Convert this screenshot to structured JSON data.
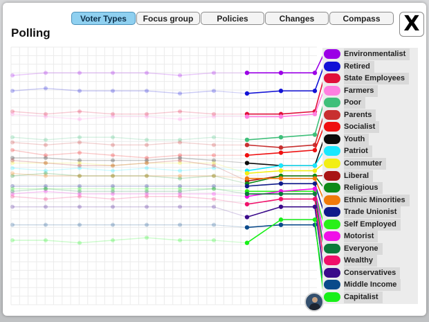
{
  "window": {
    "title": "Polling"
  },
  "tabs": [
    {
      "label": "Voter Types",
      "active": true
    },
    {
      "label": "Focus group",
      "active": false
    },
    {
      "label": "Policies",
      "active": false
    },
    {
      "label": "Changes",
      "active": false
    },
    {
      "label": "Compass",
      "active": false
    }
  ],
  "close_label": "X",
  "avatar_icon": "advisor-portrait-icon",
  "legend": [
    {
      "label": "Environmentalist",
      "color": "#9b00e6"
    },
    {
      "label": "Retired",
      "color": "#1212d6"
    },
    {
      "label": "State Employees",
      "color": "#e0103a"
    },
    {
      "label": "Farmers",
      "color": "#ff7fe0"
    },
    {
      "label": "Poor",
      "color": "#3fbf7a"
    },
    {
      "label": "Parents",
      "color": "#c83030"
    },
    {
      "label": "Socialist",
      "color": "#ef0f0f"
    },
    {
      "label": "Youth",
      "color": "#0a0a0a"
    },
    {
      "label": "Patriot",
      "color": "#19e8ff"
    },
    {
      "label": "Commuter",
      "color": "#f2ee14"
    },
    {
      "label": "Liberal",
      "color": "#a81414"
    },
    {
      "label": "Religious",
      "color": "#0c8a18"
    },
    {
      "label": "Ethnic Minorities",
      "color": "#f07a0a"
    },
    {
      "label": "Trade Unionist",
      "color": "#0f1a8a"
    },
    {
      "label": "Self Employed",
      "color": "#29f018"
    },
    {
      "label": "Motorist",
      "color": "#f010e8"
    },
    {
      "label": "Everyone",
      "color": "#0a7a3a"
    },
    {
      "label": "Wealthy",
      "color": "#f0106a"
    },
    {
      "label": "Conservatives",
      "color": "#3a0a8a"
    },
    {
      "label": "Middle Income",
      "color": "#0a4a8a"
    },
    {
      "label": "Capitalist",
      "color": "#18f018"
    }
  ],
  "chart_data": {
    "type": "line",
    "description_ranks": "y values are approval level, 0 (bottom) to 100 (top); later points are current",
    "ylim": [
      0,
      100
    ],
    "series": [
      {
        "name": "Environmentalist",
        "history": [
          89,
          90,
          90,
          90,
          90,
          89,
          90
        ],
        "recent": [
          90,
          90,
          90
        ]
      },
      {
        "name": "Retired",
        "history": [
          83,
          84,
          83,
          83,
          83,
          82,
          83
        ],
        "recent": [
          82,
          83,
          83
        ]
      },
      {
        "name": "State Employees",
        "history": [
          75,
          74,
          75,
          74,
          74,
          75,
          74
        ],
        "recent": [
          74,
          74,
          75
        ]
      },
      {
        "name": "Farmers",
        "history": [
          74,
          73,
          72,
          73,
          73,
          72,
          73
        ],
        "recent": [
          73,
          73,
          74
        ]
      },
      {
        "name": "Poor",
        "history": [
          65,
          64,
          65,
          65,
          64,
          64,
          65
        ],
        "recent": [
          64,
          65,
          66
        ]
      },
      {
        "name": "Parents",
        "history": [
          63,
          62,
          63,
          62,
          62,
          63,
          62
        ],
        "recent": [
          62,
          61,
          62
        ]
      },
      {
        "name": "Socialist",
        "history": [
          60,
          58,
          59,
          58,
          57,
          58,
          58
        ],
        "recent": [
          58,
          59,
          60
        ]
      },
      {
        "name": "Youth",
        "history": [
          57,
          57,
          56,
          56,
          56,
          57,
          56
        ],
        "recent": [
          55,
          54,
          54
        ]
      },
      {
        "name": "Patriot",
        "history": [
          53,
          52,
          53,
          52,
          53,
          52,
          53
        ],
        "recent": [
          52,
          54,
          54
        ]
      },
      {
        "name": "Commuter",
        "history": [
          55,
          55,
          55,
          54,
          55,
          55,
          55
        ],
        "recent": [
          51,
          52,
          52
        ]
      },
      {
        "name": "Liberal",
        "history": [
          56,
          55,
          54,
          54,
          55,
          56,
          54
        ],
        "recent": [
          48,
          50,
          50
        ]
      },
      {
        "name": "Religious",
        "history": [
          50,
          51,
          50,
          50,
          50,
          49,
          50
        ],
        "recent": [
          47,
          50,
          50
        ]
      },
      {
        "name": "Ethnic Minorities",
        "history": [
          51,
          50,
          50,
          50,
          50,
          50,
          50
        ],
        "recent": [
          49,
          49,
          49
        ]
      },
      {
        "name": "Trade Unionist",
        "history": [
          46,
          46,
          46,
          46,
          46,
          46,
          46
        ],
        "recent": [
          46,
          47,
          47
        ]
      },
      {
        "name": "Self Employed",
        "history": [
          45,
          45,
          45,
          45,
          45,
          45,
          45
        ],
        "recent": [
          44,
          44,
          44
        ]
      },
      {
        "name": "Motorist",
        "history": [
          43,
          44,
          43,
          43,
          43,
          43,
          43
        ],
        "recent": [
          42,
          44,
          45
        ]
      },
      {
        "name": "Everyone",
        "history": [
          44,
          45,
          44,
          44,
          44,
          44,
          45
        ],
        "recent": [
          43,
          43,
          43
        ]
      },
      {
        "name": "Wealthy",
        "history": [
          42,
          41,
          42,
          41,
          42,
          42,
          41
        ],
        "recent": [
          39,
          41,
          41
        ]
      },
      {
        "name": "Conservatives",
        "history": [
          38,
          38,
          38,
          38,
          38,
          38,
          38
        ],
        "recent": [
          34,
          38,
          38
        ]
      },
      {
        "name": "Middle Income",
        "history": [
          31,
          31,
          31,
          31,
          31,
          31,
          31
        ],
        "recent": [
          30,
          31,
          31
        ]
      },
      {
        "name": "Capitalist",
        "history": [
          25,
          25,
          24,
          25,
          26,
          25,
          25
        ],
        "recent": [
          24,
          33,
          33
        ]
      }
    ]
  }
}
